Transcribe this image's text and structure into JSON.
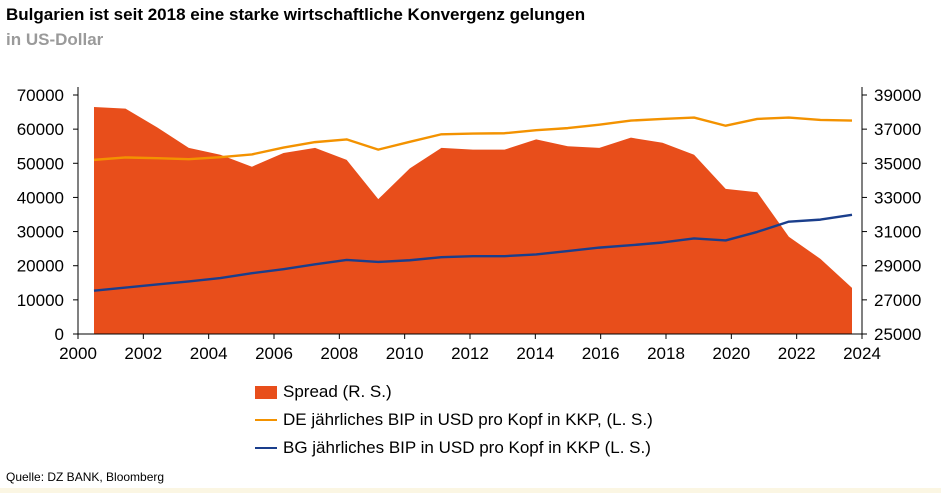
{
  "title": "Bulgarien ist seit 2018 eine starke wirtschaftliche Konvergenz gelungen",
  "subtitle": "in US-Dollar",
  "source": "Quelle: DZ BANK, Bloomberg",
  "chart_data": {
    "type": "area-line",
    "x": [
      2000,
      2001,
      2002,
      2003,
      2004,
      2005,
      2006,
      2007,
      2008,
      2009,
      2010,
      2011,
      2012,
      2013,
      2014,
      2015,
      2016,
      2017,
      2018,
      2019,
      2020,
      2021,
      2022,
      2023,
      2024
    ],
    "x_ticks": [
      "2000",
      "2002",
      "2004",
      "2006",
      "2008",
      "2010",
      "2012",
      "2014",
      "2016",
      "2018",
      "2020",
      "2022",
      "2024"
    ],
    "y_left_ticks": [
      "0",
      "10000",
      "20000",
      "30000",
      "40000",
      "50000",
      "60000",
      "70000"
    ],
    "y_right_ticks": [
      "25000",
      "27000",
      "29000",
      "31000",
      "33000",
      "35000",
      "37000",
      "39000"
    ],
    "ylim_left": [
      0,
      70000
    ],
    "ylim_right": [
      25000,
      39000
    ],
    "grid": false,
    "legend_position": "bottom",
    "series": [
      {
        "name": "Spread (R. S.)",
        "type": "area",
        "axis": "right",
        "color": "#e84e1b",
        "values": [
          38300,
          38200,
          37100,
          35900,
          35500,
          34800,
          35600,
          35900,
          35200,
          32900,
          34700,
          35900,
          35800,
          35800,
          36400,
          36000,
          35900,
          36500,
          36200,
          35500,
          33500,
          33300,
          30700,
          29400,
          27700
        ]
      },
      {
        "name": "DE jährliches BIP in USD pro Kopf in KKP, (L. S.)",
        "type": "line",
        "axis": "left",
        "color": "#f39200",
        "values": [
          51000,
          51700,
          51500,
          51200,
          51800,
          52600,
          54600,
          56200,
          57000,
          54000,
          56300,
          58500,
          58700,
          58800,
          59700,
          60300,
          61300,
          62500,
          63000,
          63400,
          61000,
          63000,
          63400,
          62700,
          62500
        ]
      },
      {
        "name": "BG jährliches BIP in USD pro Kopf in KKP (L. S.)",
        "type": "line",
        "axis": "left",
        "color": "#1a3e8c",
        "values": [
          12700,
          13600,
          14500,
          15400,
          16400,
          17800,
          19000,
          20400,
          21700,
          21100,
          21600,
          22500,
          22800,
          22800,
          23300,
          24300,
          25300,
          26000,
          26800,
          28000,
          27400,
          29900,
          32900,
          33500,
          34900
        ]
      }
    ]
  }
}
